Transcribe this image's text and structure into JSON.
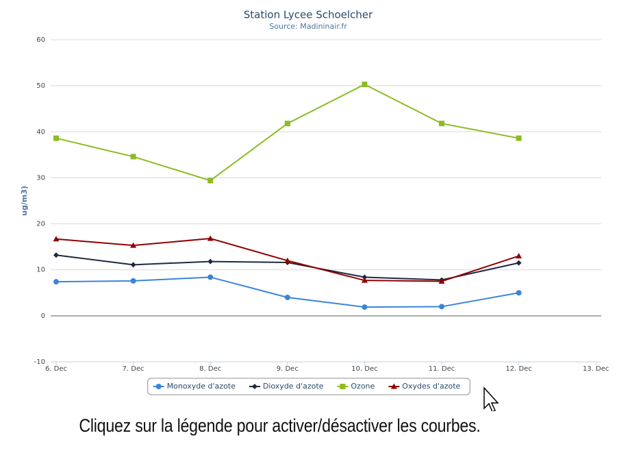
{
  "chart_data": {
    "type": "line",
    "title": "Station Lycee Schoelcher",
    "subtitle": "Source: Madininair.fr",
    "y_label": "ug/m3)",
    "categories": [
      "6. Dec",
      "7. Dec",
      "8. Dec",
      "9. Dec",
      "10. Dec",
      "11. Dec",
      "12. Dec",
      "13. Dec"
    ],
    "series": [
      {
        "name": "Monoxyde d'azote",
        "color": "#3a84d9",
        "marker": "circle",
        "values": [
          7.4,
          7.6,
          8.4,
          4.0,
          1.9,
          2.0,
          5.0,
          null
        ]
      },
      {
        "name": "Dioxyde d'azote",
        "color": "#1c2a3f",
        "marker": "diamond",
        "values": [
          13.2,
          11.1,
          11.8,
          11.6,
          8.4,
          7.8,
          11.5,
          null
        ]
      },
      {
        "name": "Ozone",
        "color": "#8bbc21",
        "marker": "square",
        "values": [
          38.6,
          34.6,
          29.4,
          41.8,
          50.3,
          41.8,
          38.6,
          null
        ]
      },
      {
        "name": "Oxydes d'azote",
        "color": "#910000",
        "marker": "triangle",
        "values": [
          16.7,
          15.3,
          16.8,
          12.0,
          7.7,
          7.5,
          13.0,
          null
        ]
      }
    ],
    "ylim": [
      -10,
      60
    ],
    "yticks": [
      -10,
      0,
      10,
      20,
      30,
      40,
      50,
      60
    ],
    "grid": true,
    "legend": "bottom"
  },
  "caption": "Cliquez sur la légende pour activer/désactiver les courbes."
}
